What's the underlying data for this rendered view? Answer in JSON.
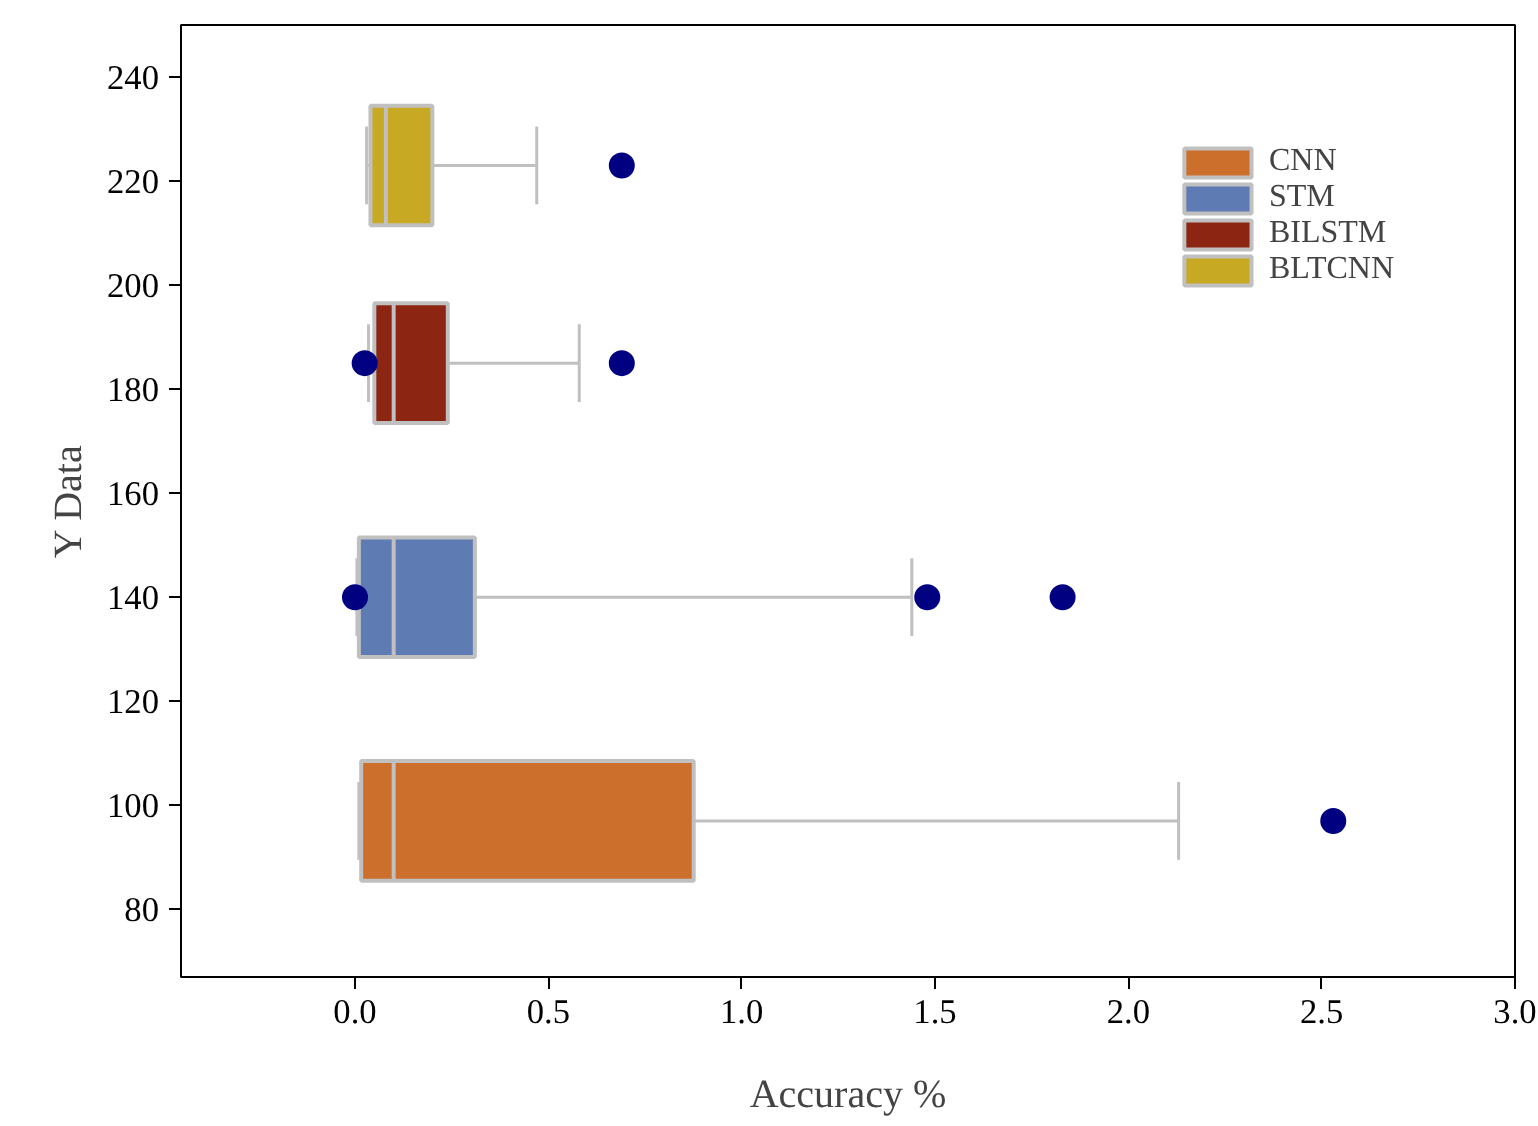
{
  "chart_data": {
    "type": "box",
    "orientation": "horizontal",
    "xlabel": "Accuracy %",
    "ylabel": "Y Data",
    "xlim": [
      -0.45,
      3.0
    ],
    "xticks": [
      {
        "value": 0,
        "label": "0.0"
      },
      {
        "value": 0.5,
        "label": "0.5"
      },
      {
        "value": 1,
        "label": "1.0"
      },
      {
        "value": 1.5,
        "label": "1.5"
      },
      {
        "value": 2,
        "label": "2.0"
      },
      {
        "value": 2.5,
        "label": "2.5"
      },
      {
        "value": 3,
        "label": "3.0"
      }
    ],
    "ylim": [
      67,
      250
    ],
    "yticks": [
      80,
      100,
      120,
      140,
      160,
      180,
      200,
      220,
      240
    ],
    "grid": false,
    "legend": "top right",
    "series": [
      {
        "name": "CNN",
        "color": "#cc6f2c",
        "x": [
          97
        ],
        "boxes": [
          {
            "low": 0.01,
            "q1": 0.016,
            "median": 0.1,
            "q3": 0.876,
            "high": 2.13,
            "outliers": [
              2.53
            ]
          }
        ]
      },
      {
        "name": "STM",
        "color": "#5f7bb4",
        "x": [
          140
        ],
        "boxes": [
          {
            "low": 0.005,
            "q1": 0.01,
            "median": 0.1,
            "q3": 0.31,
            "high": 1.44,
            "outliers": [
              0.0,
              1.48,
              1.83
            ]
          }
        ]
      },
      {
        "name": "BILSTM",
        "color": "#8c2512",
        "x": [
          185
        ],
        "boxes": [
          {
            "low": 0.035,
            "q1": 0.05,
            "median": 0.1,
            "q3": 0.24,
            "high": 0.58,
            "outliers": [
              0.025,
              0.69
            ]
          }
        ]
      },
      {
        "name": "BLTCNN",
        "color": "#c8a924",
        "x": [
          223
        ],
        "boxes": [
          {
            "low": 0.03,
            "q1": 0.04,
            "median": 0.08,
            "q3": 0.2,
            "high": 0.47,
            "outliers": [
              0.69
            ]
          }
        ]
      }
    ]
  }
}
